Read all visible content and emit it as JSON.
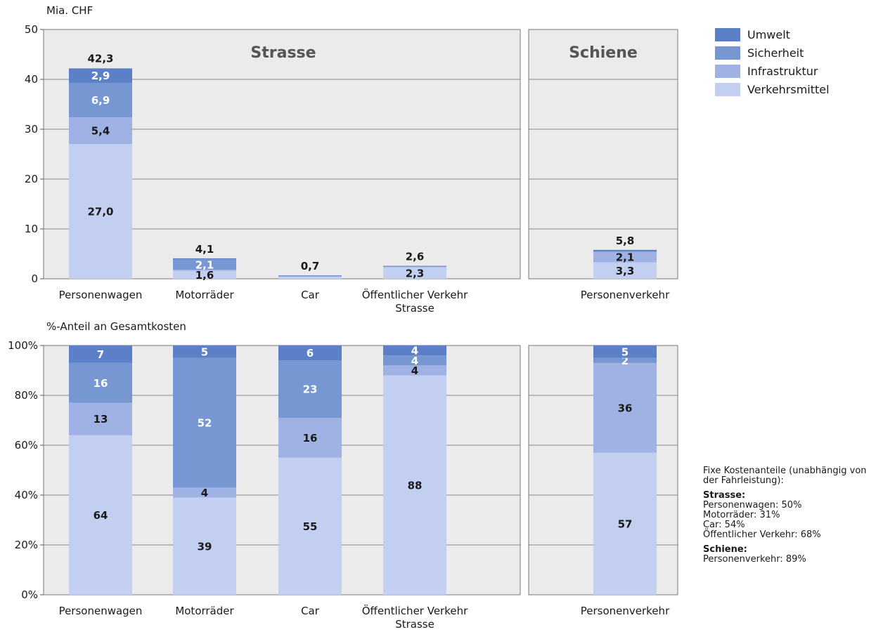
{
  "chart_data": [
    {
      "type": "bar",
      "stacked": true,
      "ylabel": "Mia. CHF",
      "ylim": [
        0,
        50
      ],
      "yticks": [
        "0",
        "10",
        "20",
        "30",
        "40",
        "50"
      ],
      "grid": true,
      "legend_placement": "top-right",
      "groups": [
        {
          "name": "Strasse",
          "categories": [
            "Personenwagen",
            "Motorräder",
            "Car",
            "Öffentlicher Verkehr Strasse"
          ]
        },
        {
          "name": "Schiene",
          "categories": [
            "Personenverkehr"
          ]
        }
      ],
      "category_labels": [
        [
          "Personenwagen"
        ],
        [
          "Motorräder"
        ],
        [
          "Car"
        ],
        [
          "Öffentlicher Verkehr",
          "Strasse"
        ],
        [
          "Personenverkehr"
        ]
      ],
      "series": [
        {
          "name": "Verkehrsmittel",
          "values": [
            27.0,
            1.6,
            0.4,
            2.3,
            3.3
          ],
          "labels": [
            "27,0",
            "1,6",
            "",
            "2,3",
            "3,3"
          ]
        },
        {
          "name": "Infrastruktur",
          "values": [
            5.4,
            0.2,
            0.1,
            0.1,
            2.1
          ],
          "labels": [
            "5,4",
            "",
            "",
            "",
            "2,1"
          ]
        },
        {
          "name": "Sicherheit",
          "values": [
            6.9,
            2.1,
            0.15,
            0.1,
            0.1
          ],
          "labels": [
            "6,9",
            "2,1",
            "",
            "",
            ""
          ]
        },
        {
          "name": "Umwelt",
          "values": [
            2.9,
            0.2,
            0.05,
            0.1,
            0.3
          ],
          "labels": [
            "2,9",
            "",
            "",
            "",
            ""
          ]
        }
      ],
      "totals": [
        "42,3",
        "4,1",
        "0,7",
        "2,6",
        "5,8"
      ],
      "total_values": [
        42.3,
        4.1,
        0.7,
        2.6,
        5.8
      ]
    },
    {
      "type": "bar",
      "stacked": true,
      "ylabel": "%-Anteil an Gesamtkosten",
      "ylim": [
        0,
        100
      ],
      "yticks": [
        "0%",
        "20%",
        "40%",
        "60%",
        "80%",
        "100%"
      ],
      "grid": true,
      "groups": [
        {
          "name": "Strasse",
          "categories": [
            "Personenwagen",
            "Motorräder",
            "Car",
            "Öffentlicher Verkehr Strasse"
          ]
        },
        {
          "name": "Schiene",
          "categories": [
            "Personenverkehr"
          ]
        }
      ],
      "category_labels": [
        [
          "Personenwagen"
        ],
        [
          "Motorräder"
        ],
        [
          "Car"
        ],
        [
          "Öffentlicher Verkehr",
          "Strasse"
        ],
        [
          "Personenverkehr"
        ]
      ],
      "series": [
        {
          "name": "Verkehrsmittel",
          "values": [
            64,
            39,
            55,
            88,
            57
          ],
          "labels": [
            "64",
            "39",
            "55",
            "88",
            "57"
          ]
        },
        {
          "name": "Infrastruktur",
          "values": [
            13,
            4,
            16,
            4,
            36
          ],
          "labels": [
            "13",
            "4",
            "16",
            "4",
            "36"
          ]
        },
        {
          "name": "Sicherheit",
          "values": [
            16,
            52,
            23,
            4,
            2
          ],
          "labels": [
            "16",
            "52",
            "23",
            "4",
            "2"
          ]
        },
        {
          "name": "Umwelt",
          "values": [
            7,
            5,
            6,
            4,
            5
          ],
          "labels": [
            "7",
            "5",
            "6",
            "4",
            "5"
          ]
        }
      ]
    }
  ],
  "legend": [
    {
      "name": "Umwelt",
      "color": "#5b80c7"
    },
    {
      "name": "Sicherheit",
      "color": "#7797d3"
    },
    {
      "name": "Infrastruktur",
      "color": "#a0b2e4"
    },
    {
      "name": "Verkehrsmittel",
      "color": "#c3cff1"
    }
  ],
  "colors": {
    "Verkehrsmittel": "#c3cff1",
    "Infrastruktur": "#a0b2e4",
    "Sicherheit": "#7797d3",
    "Umwelt": "#5b80c7",
    "plot_background": "#ebebeb",
    "group_title": "#555555"
  },
  "note": {
    "intro": "Fixe Kostenanteile (unabhängig von der Fahrleistung):",
    "road_heading": "Strasse:",
    "road_lines": [
      "Personenwagen: 50%",
      "Motorräder: 31%",
      "Car: 54%",
      "Öffentlicher Verkehr: 68%"
    ],
    "rail_heading": "Schiene:",
    "rail_lines": [
      "Personenverkehr: 89%"
    ]
  }
}
